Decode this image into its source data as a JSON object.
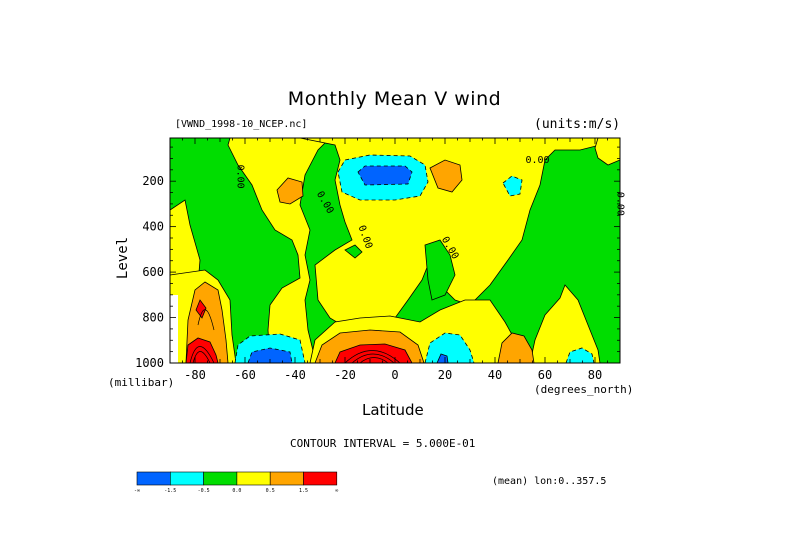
{
  "header": {
    "title": "Monthly Mean V wind",
    "source_file": "[VWND_1998-10_NCEP.nc]",
    "units": "(units:m/s)"
  },
  "footer": {
    "contour_interval": "CONTOUR INTERVAL = 5.000E-01",
    "mean_note": "(mean) lon:0..357.5"
  },
  "chart_data": {
    "type": "heatmap",
    "title": "Monthly Mean V wind",
    "xlabel": "Latitude",
    "xunits": "(degrees_north)",
    "ylabel": "Level",
    "yunits": "(millibar)",
    "xlim": [
      -90,
      90
    ],
    "ylim": [
      1000,
      10
    ],
    "y_inverted": true,
    "x_ticks": [
      -80,
      -60,
      -40,
      -20,
      0,
      20,
      40,
      60,
      80
    ],
    "y_ticks": [
      200,
      400,
      600,
      800,
      1000
    ],
    "contour_labels": [
      "0.00",
      "0.00",
      "0.00",
      "0.00",
      "0.00",
      "0.00"
    ],
    "colorbar": {
      "labels": [
        "-∞",
        "-1.5",
        "-0.5",
        "0.0",
        "0.5",
        "1.5",
        "∞"
      ],
      "colors": [
        "#0064ff",
        "#00ffff",
        "#00dd00",
        "#ffff00",
        "#ffa500",
        "#ff0000"
      ]
    },
    "features": [
      {
        "lat": -12,
        "lev": 190,
        "value": -2.5
      },
      {
        "lat": -48,
        "lev": 980,
        "value": -2.0
      },
      {
        "lat": 20,
        "lev": 980,
        "value": -2.0
      },
      {
        "lat": 75,
        "lev": 985,
        "value": -1.5
      },
      {
        "lat": 50,
        "lev": 200,
        "value": -1.0
      },
      {
        "lat": -15,
        "lev": 960,
        "value": 2.0
      },
      {
        "lat": -82,
        "lev": 960,
        "value": 3.0
      },
      {
        "lat": -75,
        "lev": 750,
        "value": 1.2
      },
      {
        "lat": 50,
        "lev": 970,
        "value": 1.0
      },
      {
        "lat": 20,
        "lev": 200,
        "value": 0.8
      },
      {
        "lat": -40,
        "lev": 250,
        "value": 0.8
      }
    ]
  }
}
